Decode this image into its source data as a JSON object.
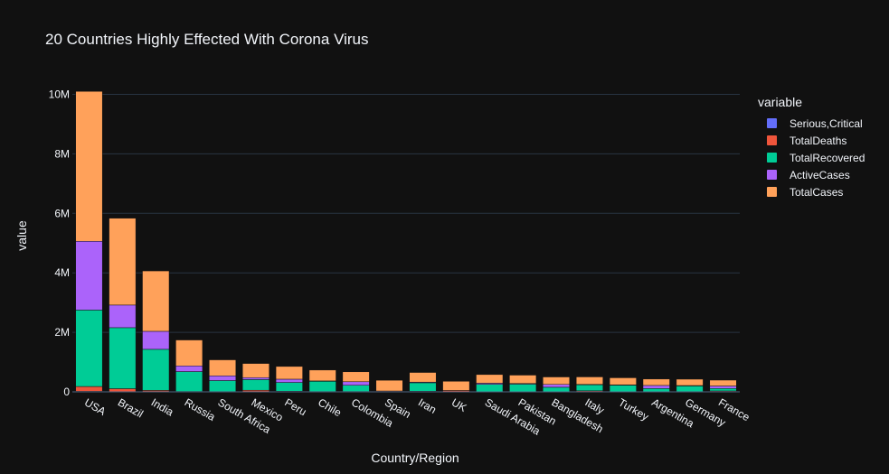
{
  "chart_data": {
    "type": "bar",
    "barmode": "stack",
    "title": "20 Countries Highly Effected With Corona Virus",
    "xlabel": "Country/Region",
    "ylabel": "value",
    "ylim": [
      0,
      10500000
    ],
    "yticks": [
      0,
      2000000,
      4000000,
      6000000,
      8000000,
      10000000
    ],
    "yticklabels": [
      "0",
      "2M",
      "4M",
      "6M",
      "8M",
      "10M"
    ],
    "legend_title": "variable",
    "legend_position": "right",
    "grid": true,
    "categories": [
      "USA",
      "Brazil",
      "India",
      "Russia",
      "South Africa",
      "Mexico",
      "Peru",
      "Chile",
      "Colombia",
      "Spain",
      "Iran",
      "UK",
      "Saudi Arabia",
      "Pakistan",
      "Bangladesh",
      "Italy",
      "Turkey",
      "Argentina",
      "Germany",
      "France"
    ],
    "series": [
      {
        "name": "Serious,Critical",
        "color": "#636efa",
        "values": [
          18000,
          8300,
          8900,
          2300,
          540,
          3900,
          1500,
          1300,
          1500,
          620,
          4000,
          73,
          1900,
          1000,
          0,
          40,
          610,
          1100,
          240,
          380
        ]
      },
      {
        "name": "TotalDeaths",
        "color": "#ef553b",
        "values": [
          162000,
          99000,
          40700,
          11200,
          9600,
          50500,
          20400,
          9900,
          10900,
          28500,
          17600,
          46400,
          3300,
          6000,
          3400,
          35200,
          5700,
          4500,
          9200,
          30300
        ]
      },
      {
        "name": "TotalRecovered",
        "color": "#00cc96",
        "values": [
          2570000,
          2050000,
          1380000,
          667000,
          369000,
          358000,
          294000,
          344000,
          209000,
          0,
          284000,
          0,
          248000,
          253000,
          151000,
          202000,
          218000,
          107000,
          190000,
          83000
        ]
      },
      {
        "name": "ActiveCases",
        "color": "#ab63fa",
        "values": [
          2310000,
          760000,
          605000,
          192000,
          159000,
          66000,
          110000,
          12000,
          119000,
          0,
          22000,
          0,
          38000,
          21000,
          96000,
          14000,
          12000,
          103000,
          13000,
          84000
        ]
      },
      {
        "name": "TotalCases",
        "color": "#ffa15a",
        "values": [
          5040000,
          2920000,
          2030000,
          871000,
          538000,
          475000,
          428000,
          366000,
          334000,
          361000,
          324000,
          309000,
          290000,
          281000,
          250000,
          251000,
          236000,
          215000,
          213000,
          197000
        ]
      }
    ]
  }
}
